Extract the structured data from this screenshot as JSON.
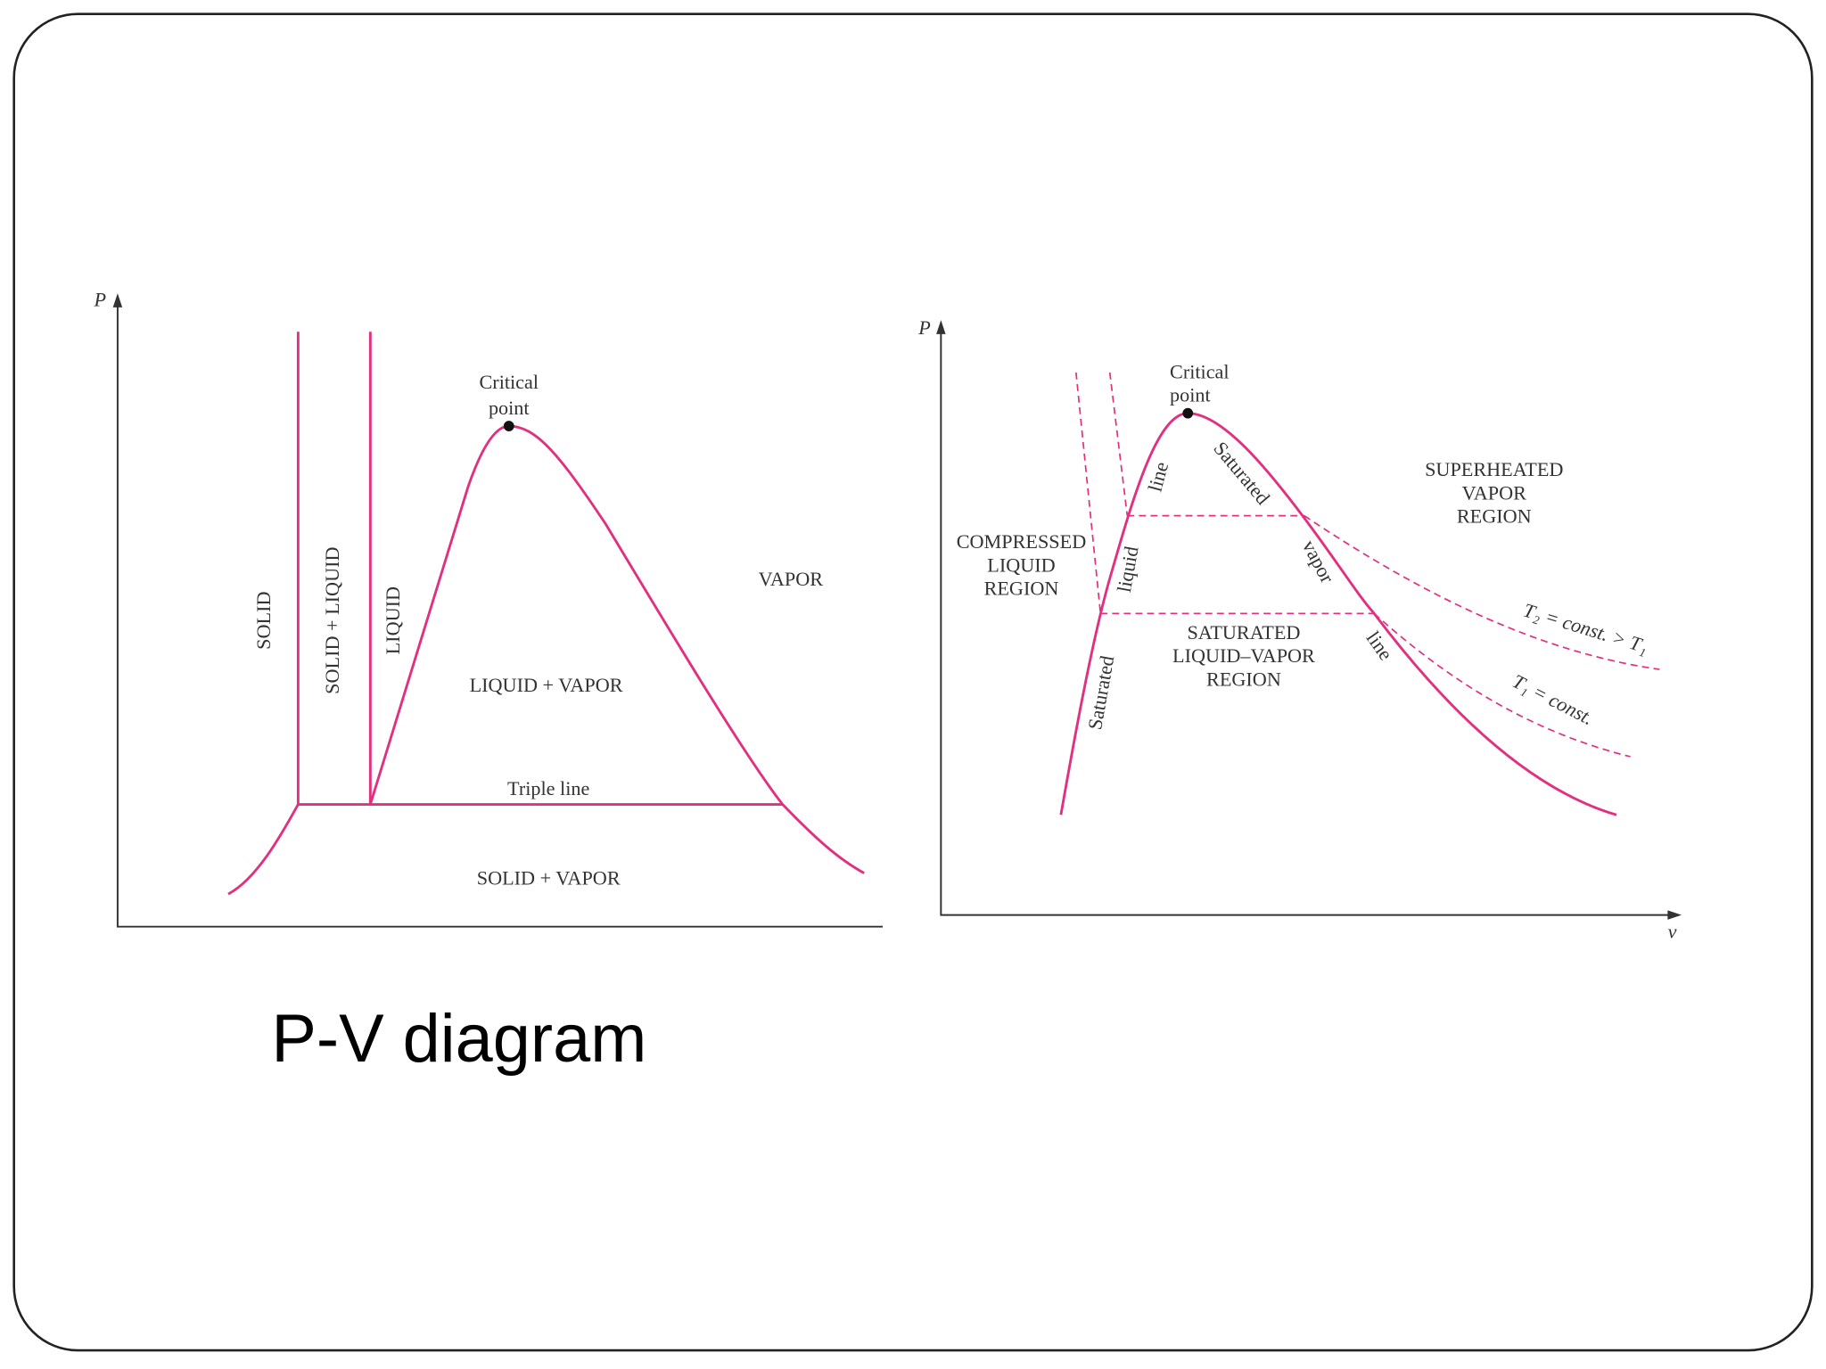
{
  "title": "P-V diagram",
  "left": {
    "axis_y": "P",
    "labels": [
      "Critical",
      "point",
      "SOLID",
      "SOLID + LIQUID",
      "LIQUID",
      "VAPOR",
      "LIQUID + VAPOR",
      "Triple line",
      "SOLID + VAPOR"
    ]
  },
  "right": {
    "axis_y": "P",
    "axis_x": "v",
    "labels": [
      "Critical",
      "point",
      "SUPERHEATED",
      "VAPOR",
      "REGION",
      "COMPRESSED",
      "LIQUID",
      "REGION",
      "SATURATED",
      "LIQUID–VAPOR",
      "REGION",
      "line",
      "liquid",
      "Saturated",
      "Saturated",
      "vapor",
      "line",
      "T₂ = const. > T₁",
      "T₁ = const."
    ]
  }
}
